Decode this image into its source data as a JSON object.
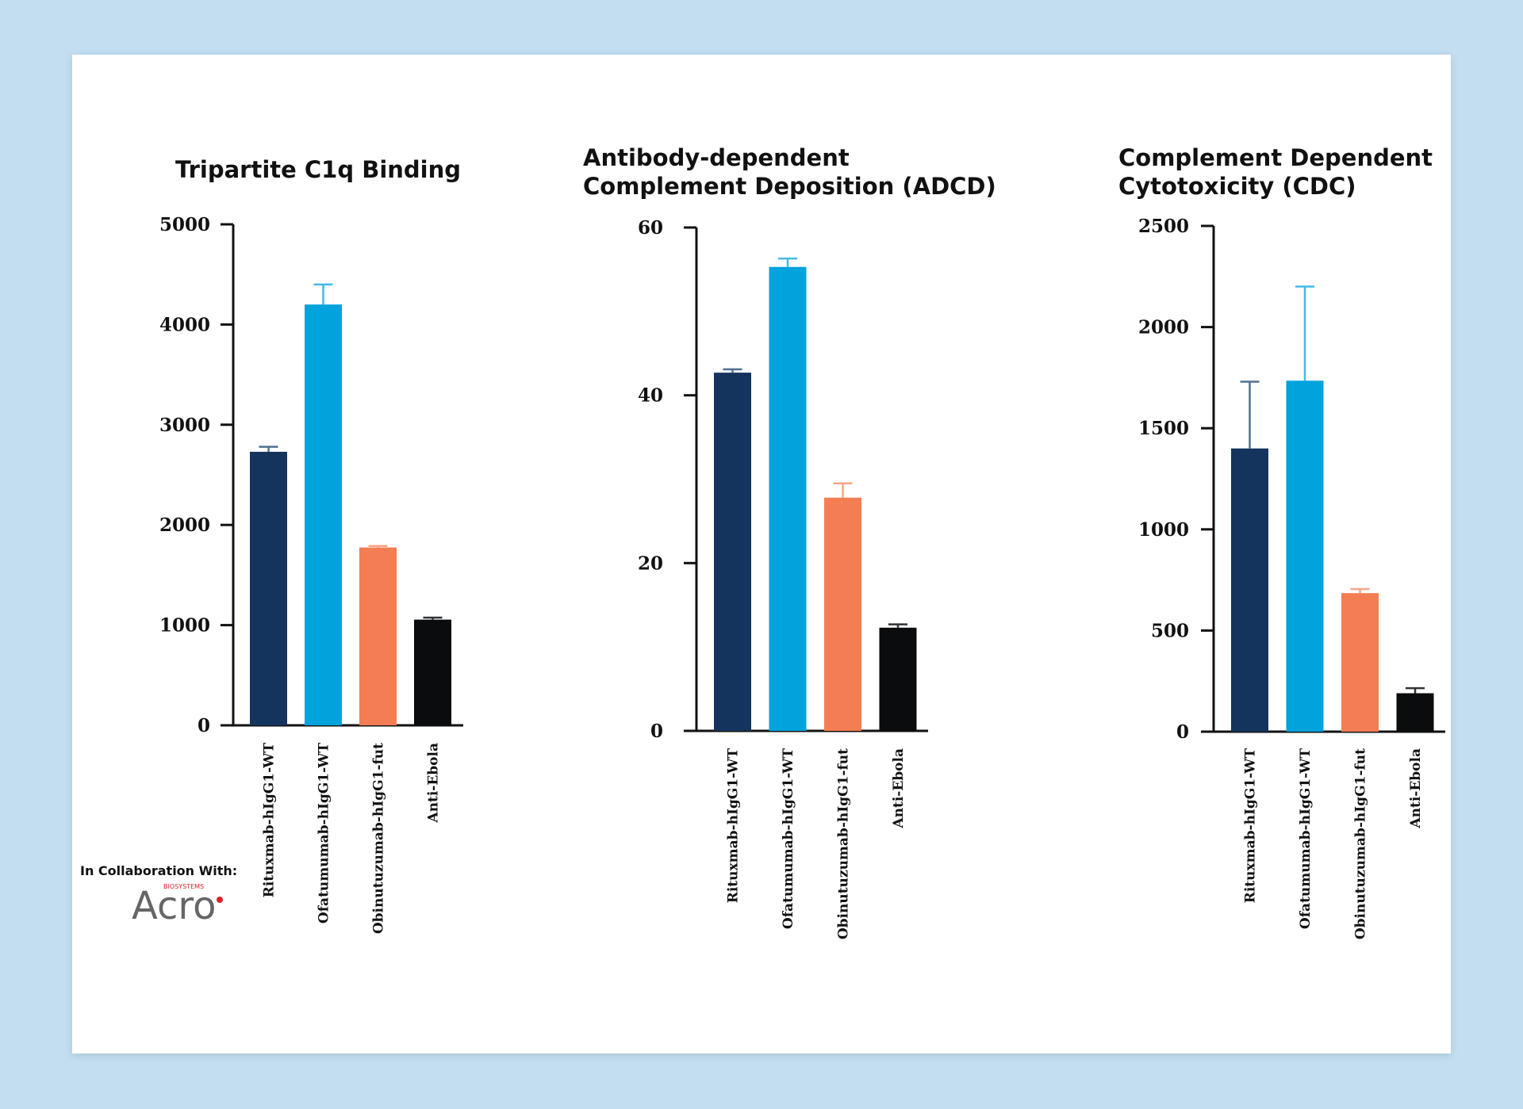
{
  "colors": {
    "page_background": "#c3def0",
    "card_background": "#ffffff",
    "axis": "#111111"
  },
  "footer": {
    "collab_label": "In Collaboration With:",
    "logo_text": "Acro",
    "logo_subtext": "BIOSYSTEMS"
  },
  "chart_data": [
    {
      "type": "bar",
      "title": [
        "Tripartite C1q Binding"
      ],
      "categories": [
        "Rituxmab-hIgG1-WT",
        "Ofatumumab-hIgG1-WT",
        "Obinutuzumab-hIgG1-fut",
        "Anti-Ebola"
      ],
      "values": [
        2730,
        4200,
        1775,
        1055
      ],
      "errors": [
        50,
        200,
        15,
        20
      ],
      "bar_colors": [
        "#14345e",
        "#00a3dc",
        "#f47d53",
        "#0a0c0d"
      ],
      "error_colors": [
        "#4e7292",
        "#45b9e6",
        "#f7a586",
        "#333333"
      ],
      "ylim": [
        0,
        5000
      ],
      "yticks": [
        0,
        1000,
        2000,
        3000,
        4000,
        5000
      ],
      "xlabel": "",
      "ylabel": "",
      "grid": false,
      "legend": "none"
    },
    {
      "type": "bar",
      "title": [
        "Antibody-dependent",
        "Complement Deposition (ADCD)"
      ],
      "categories": [
        "Rituxmab-hIgG1-WT",
        "Ofatumumab-hIgG1-WT",
        "Obinutuzumab-hIgG1-fut",
        "Anti-Ebola"
      ],
      "values": [
        42.7,
        55.3,
        27.8,
        12.3
      ],
      "errors": [
        0.4,
        1.0,
        1.7,
        0.4
      ],
      "bar_colors": [
        "#14345e",
        "#00a3dc",
        "#f47d53",
        "#0a0c0d"
      ],
      "error_colors": [
        "#4e7292",
        "#45b9e6",
        "#f7a586",
        "#333333"
      ],
      "ylim": [
        0,
        60
      ],
      "yticks": [
        0,
        20,
        40,
        60
      ],
      "xlabel": "",
      "ylabel": "",
      "grid": false,
      "legend": "none"
    },
    {
      "type": "bar",
      "title": [
        "Complement Dependent",
        "Cytotoxicity (CDC)"
      ],
      "categories": [
        "Rituxmab-hIgG1-WT",
        "Ofatumumab-hIgG1-WT",
        "Obinutuzumab-hIgG1-fut",
        "Anti-Ebola"
      ],
      "values": [
        1400,
        1735,
        685,
        190
      ],
      "errors": [
        330,
        465,
        20,
        25
      ],
      "bar_colors": [
        "#14345e",
        "#00a3dc",
        "#f47d53",
        "#0a0c0d"
      ],
      "error_colors": [
        "#4e7292",
        "#45b9e6",
        "#f7a586",
        "#333333"
      ],
      "ylim": [
        0,
        2500
      ],
      "yticks": [
        0,
        500,
        1000,
        1500,
        2000,
        2500
      ],
      "xlabel": "",
      "ylabel": "",
      "grid": false,
      "legend": "none"
    }
  ]
}
